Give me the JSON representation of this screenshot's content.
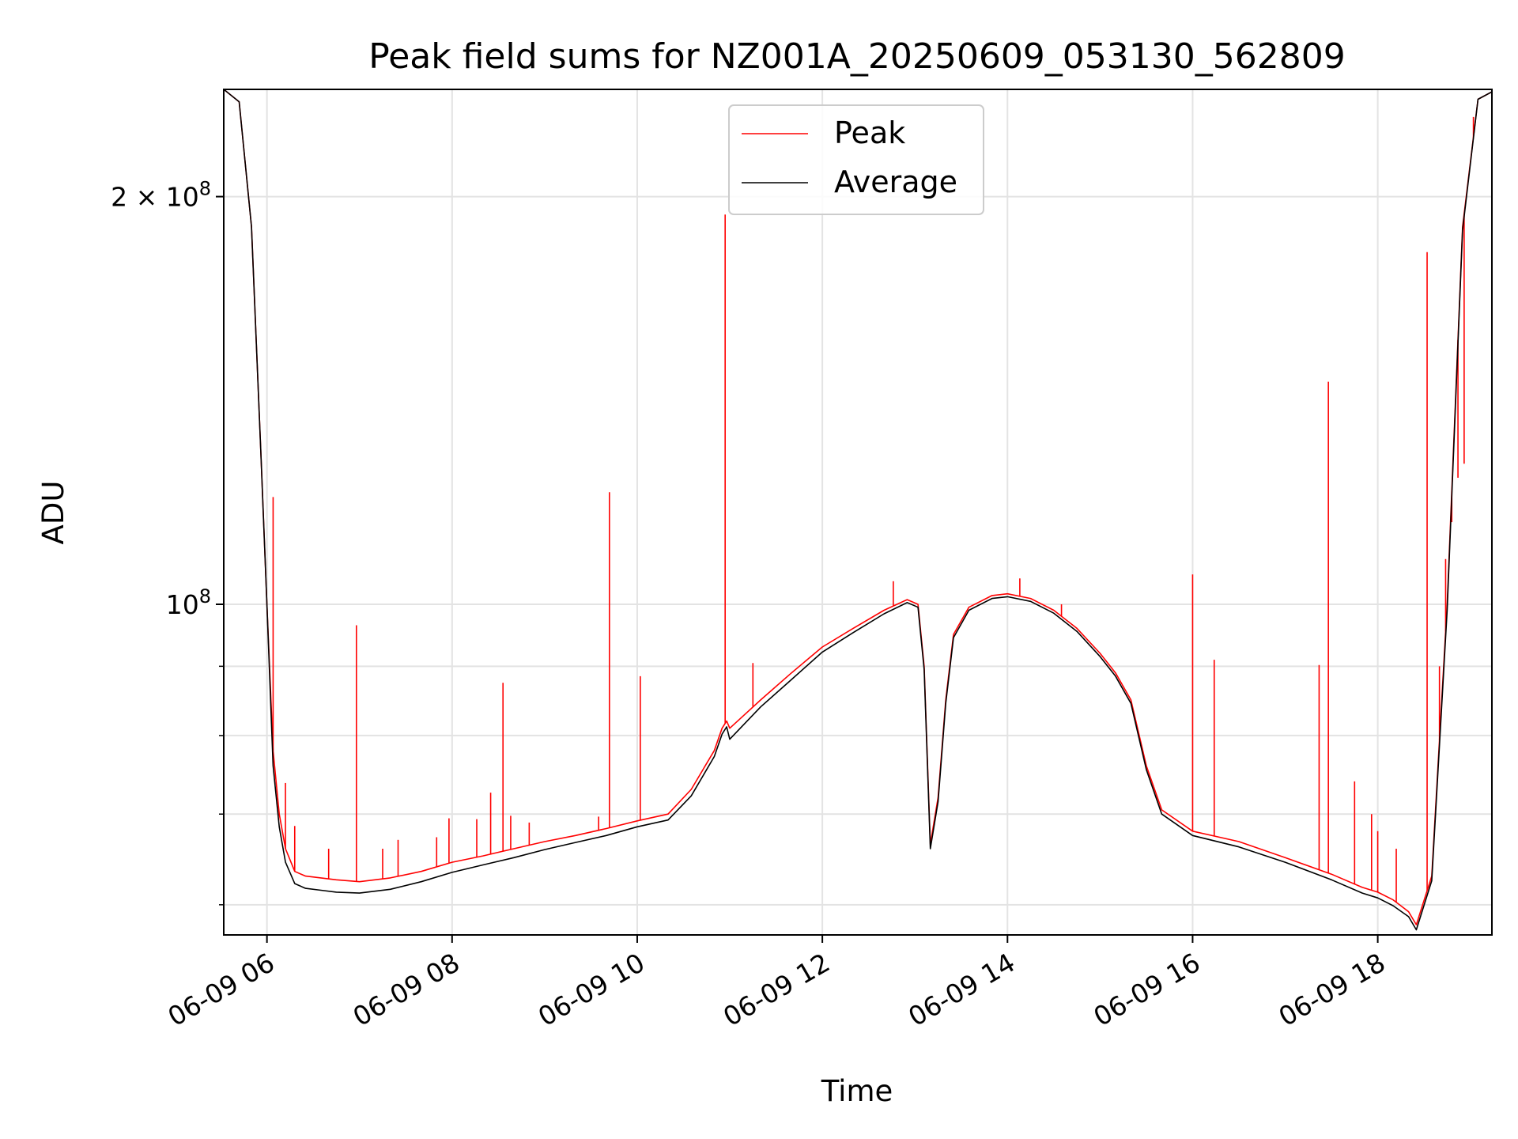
{
  "chart_data": {
    "type": "line",
    "title": "Peak field sums for NZ001A_20250609_053130_562809",
    "xlabel": "Time",
    "ylabel": "ADU",
    "y_scale": "log",
    "ylim": [
      57000000,
      240000000
    ],
    "xlim": [
      "06-09 05:32",
      "06-09 19:14"
    ],
    "x_ticks": [
      "06-09 06",
      "06-09 08",
      "06-09 10",
      "06-09 12",
      "06-09 14",
      "06-09 16",
      "06-09 18"
    ],
    "y_ticks": [
      {
        "value": 100000000,
        "label": "10",
        "exp": "8"
      },
      {
        "value": 200000000,
        "label": "2 × 10",
        "exp": "8"
      }
    ],
    "y_minor_ticks": [
      60000000,
      70000000,
      80000000,
      90000000
    ],
    "grid": true,
    "legend_position": "upper-center",
    "x": [
      "06-09 05:32",
      "06-09 05:42",
      "06-09 05:50",
      "06-09 05:56",
      "06-09 06:00",
      "06-09 06:04",
      "06-09 06:08",
      "06-09 06:12",
      "06-09 06:18",
      "06-09 06:25",
      "06-09 06:35",
      "06-09 06:45",
      "06-09 07:00",
      "06-09 07:20",
      "06-09 07:40",
      "06-09 08:00",
      "06-09 08:20",
      "06-09 08:40",
      "06-09 09:00",
      "06-09 09:20",
      "06-09 09:40",
      "06-09 10:00",
      "06-09 10:20",
      "06-09 10:35",
      "06-09 10:50",
      "06-09 10:55",
      "06-09 10:58",
      "06-09 11:00",
      "06-09 11:20",
      "06-09 11:40",
      "06-09 12:00",
      "06-09 12:20",
      "06-09 12:40",
      "06-09 12:55",
      "06-09 13:02",
      "06-09 13:06",
      "06-09 13:10",
      "06-09 13:15",
      "06-09 13:20",
      "06-09 13:25",
      "06-09 13:35",
      "06-09 13:50",
      "06-09 14:00",
      "06-09 14:15",
      "06-09 14:30",
      "06-09 14:45",
      "06-09 15:00",
      "06-09 15:10",
      "06-09 15:20",
      "06-09 15:30",
      "06-09 15:40",
      "06-09 16:00",
      "06-09 16:30",
      "06-09 17:00",
      "06-09 17:30",
      "06-09 17:50",
      "06-09 18:00",
      "06-09 18:10",
      "06-09 18:20",
      "06-09 18:25",
      "06-09 18:35",
      "06-09 18:45",
      "06-09 18:55",
      "06-09 19:05",
      "06-09 19:14"
    ],
    "series": [
      {
        "name": "Peak",
        "color": "#ff0000",
        "values": [
          240000000,
          235000000,
          190000000,
          130000000,
          100000000,
          78000000,
          70000000,
          66000000,
          63500000,
          63000000,
          62800000,
          62600000,
          62400000,
          62800000,
          63500000,
          64500000,
          65200000,
          66000000,
          66800000,
          67500000,
          68300000,
          69200000,
          70000000,
          73000000,
          78000000,
          81000000,
          82000000,
          81000000,
          85000000,
          89000000,
          93000000,
          96000000,
          99000000,
          100800000,
          100000000,
          90000000,
          66500000,
          72000000,
          85000000,
          95000000,
          99500000,
          101500000,
          101800000,
          101000000,
          99000000,
          96000000,
          92000000,
          89000000,
          85000000,
          76000000,
          70500000,
          68000000,
          66800000,
          65000000,
          63200000,
          61800000,
          61300000,
          60500000,
          59300000,
          58000000,
          63000000,
          100000000,
          190000000,
          236000000,
          239000000
        ],
        "spikes": [
          {
            "x": "06-09 06:04",
            "y": 120000000
          },
          {
            "x": "06-09 06:12",
            "y": 73800000
          },
          {
            "x": "06-09 06:18",
            "y": 68600000
          },
          {
            "x": "06-09 06:40",
            "y": 66000000
          },
          {
            "x": "06-09 06:58",
            "y": 96500000
          },
          {
            "x": "06-09 07:15",
            "y": 66000000
          },
          {
            "x": "06-09 07:25",
            "y": 67000000
          },
          {
            "x": "06-09 07:50",
            "y": 67300000
          },
          {
            "x": "06-09 07:58",
            "y": 69500000
          },
          {
            "x": "06-09 08:16",
            "y": 69400000
          },
          {
            "x": "06-09 08:25",
            "y": 72600000
          },
          {
            "x": "06-09 08:33",
            "y": 87500000
          },
          {
            "x": "06-09 08:38",
            "y": 69800000
          },
          {
            "x": "06-09 08:50",
            "y": 69000000
          },
          {
            "x": "06-09 09:35",
            "y": 69700000
          },
          {
            "x": "06-09 09:42",
            "y": 121000000
          },
          {
            "x": "06-09 10:02",
            "y": 88500000
          },
          {
            "x": "06-09 10:57",
            "y": 194000000
          },
          {
            "x": "06-09 11:15",
            "y": 90500000
          },
          {
            "x": "06-09 12:46",
            "y": 104000000
          },
          {
            "x": "06-09 14:08",
            "y": 104500000
          },
          {
            "x": "06-09 14:35",
            "y": 100000000
          },
          {
            "x": "06-09 16:00",
            "y": 105200000
          },
          {
            "x": "06-09 16:14",
            "y": 91000000
          },
          {
            "x": "06-09 17:22",
            "y": 90200000
          },
          {
            "x": "06-09 17:28",
            "y": 146000000
          },
          {
            "x": "06-09 17:45",
            "y": 74000000
          },
          {
            "x": "06-09 17:56",
            "y": 70000000
          },
          {
            "x": "06-09 18:00",
            "y": 68000000
          },
          {
            "x": "06-09 18:12",
            "y": 66000000
          },
          {
            "x": "06-09 18:32",
            "y": 182000000
          },
          {
            "x": "06-09 18:40",
            "y": 90000000
          },
          {
            "x": "06-09 18:44",
            "y": 108000000
          },
          {
            "x": "06-09 18:48",
            "y": 115000000
          },
          {
            "x": "06-09 18:52",
            "y": 124000000
          },
          {
            "x": "06-09 18:56",
            "y": 127000000
          },
          {
            "x": "06-09 19:02",
            "y": 229000000
          }
        ]
      },
      {
        "name": "Average",
        "color": "#000000",
        "values": [
          240000000,
          235000000,
          190000000,
          130000000,
          100000000,
          76000000,
          68500000,
          64500000,
          62200000,
          61700000,
          61500000,
          61300000,
          61200000,
          61600000,
          62400000,
          63400000,
          64200000,
          65000000,
          65900000,
          66700000,
          67500000,
          68500000,
          69300000,
          72200000,
          77200000,
          80200000,
          81200000,
          79500000,
          84000000,
          88000000,
          92200000,
          95300000,
          98400000,
          100300000,
          99500000,
          89500000,
          66000000,
          71500000,
          84500000,
          94500000,
          99000000,
          101000000,
          101300000,
          100500000,
          98500000,
          95500000,
          91500000,
          88500000,
          84500000,
          75500000,
          70000000,
          67500000,
          66200000,
          64500000,
          62600000,
          61200000,
          60700000,
          59900000,
          58800000,
          57500000,
          62500000,
          99000000,
          189000000,
          236000000,
          239000000
        ]
      }
    ]
  }
}
